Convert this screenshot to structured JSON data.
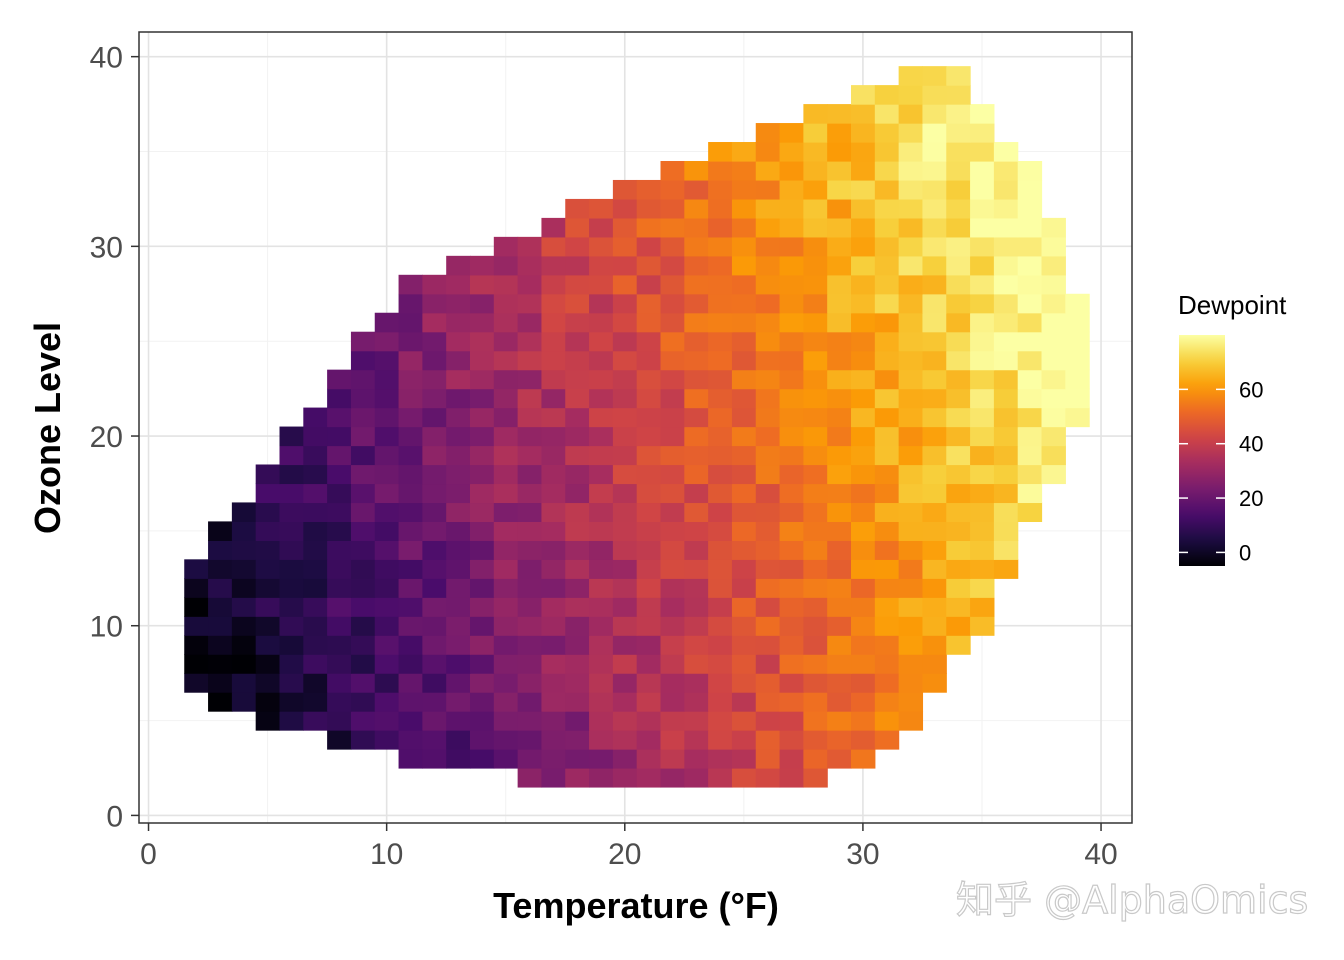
{
  "chart_data": {
    "type": "heatmap",
    "xlabel": "Temperature (°F)",
    "ylabel": "Ozone Level",
    "xlim": [
      -0.4,
      41.3
    ],
    "ylim": [
      -0.4,
      41.3
    ],
    "x_ticks": [
      0,
      10,
      20,
      30,
      40
    ],
    "y_ticks": [
      0,
      10,
      20,
      30,
      40
    ],
    "grid": true,
    "cell_size": 1,
    "colormap": "inferno",
    "color_stops": [
      "#000004",
      "#1b0c41",
      "#4a0c6b",
      "#781c6d",
      "#a52c60",
      "#cf4446",
      "#ed6925",
      "#fb9b06",
      "#f7d13d",
      "#fcffa4"
    ],
    "color_range": [
      -5,
      80
    ],
    "legend": {
      "title": "Dewpoint",
      "placement": "right",
      "ticks": [
        0,
        20,
        40,
        60
      ]
    },
    "row_extents": [
      {
        "y": 2,
        "x_start": 16,
        "x_end": 28
      },
      {
        "y": 3,
        "x_start": 11,
        "x_end": 30
      },
      {
        "y": 4,
        "x_start": 8,
        "x_end": 31
      },
      {
        "y": 5,
        "x_start": 5,
        "x_end": 32
      },
      {
        "y": 6,
        "x_start": 3,
        "x_end": 32
      },
      {
        "y": 7,
        "x_start": 2,
        "x_end": 33
      },
      {
        "y": 8,
        "x_start": 2,
        "x_end": 33
      },
      {
        "y": 9,
        "x_start": 2,
        "x_end": 34
      },
      {
        "y": 10,
        "x_start": 2,
        "x_end": 35
      },
      {
        "y": 11,
        "x_start": 2,
        "x_end": 35
      },
      {
        "y": 12,
        "x_start": 2,
        "x_end": 35
      },
      {
        "y": 13,
        "x_start": 2,
        "x_end": 36
      },
      {
        "y": 14,
        "x_start": 3,
        "x_end": 36
      },
      {
        "y": 15,
        "x_start": 3,
        "x_end": 36
      },
      {
        "y": 16,
        "x_start": 4,
        "x_end": 37
      },
      {
        "y": 17,
        "x_start": 5,
        "x_end": 37
      },
      {
        "y": 18,
        "x_start": 5,
        "x_end": 38
      },
      {
        "y": 19,
        "x_start": 6,
        "x_end": 38
      },
      {
        "y": 20,
        "x_start": 6,
        "x_end": 38
      },
      {
        "y": 21,
        "x_start": 7,
        "x_end": 39
      },
      {
        "y": 22,
        "x_start": 8,
        "x_end": 39
      },
      {
        "y": 23,
        "x_start": 8,
        "x_end": 39
      },
      {
        "y": 24,
        "x_start": 9,
        "x_end": 39
      },
      {
        "y": 25,
        "x_start": 9,
        "x_end": 39
      },
      {
        "y": 26,
        "x_start": 10,
        "x_end": 39
      },
      {
        "y": 27,
        "x_start": 11,
        "x_end": 39
      },
      {
        "y": 28,
        "x_start": 11,
        "x_end": 38
      },
      {
        "y": 29,
        "x_start": 13,
        "x_end": 38
      },
      {
        "y": 30,
        "x_start": 15,
        "x_end": 38
      },
      {
        "y": 31,
        "x_start": 17,
        "x_end": 38
      },
      {
        "y": 32,
        "x_start": 18,
        "x_end": 37
      },
      {
        "y": 33,
        "x_start": 20,
        "x_end": 37
      },
      {
        "y": 34,
        "x_start": 22,
        "x_end": 37
      },
      {
        "y": 35,
        "x_start": 24,
        "x_end": 36
      },
      {
        "y": 36,
        "x_start": 26,
        "x_end": 35
      },
      {
        "y": 37,
        "x_start": 28,
        "x_end": 35
      },
      {
        "y": 38,
        "x_start": 30,
        "x_end": 34
      },
      {
        "y": 39,
        "x_start": 32,
        "x_end": 34
      }
    ],
    "dewpoint_model": {
      "description": "approximate dewpoint per cell",
      "intercept": -12,
      "temp_coef": 2.05,
      "ozone_coef": 0.55
    }
  },
  "watermark": "知乎 @AlphaOmics"
}
